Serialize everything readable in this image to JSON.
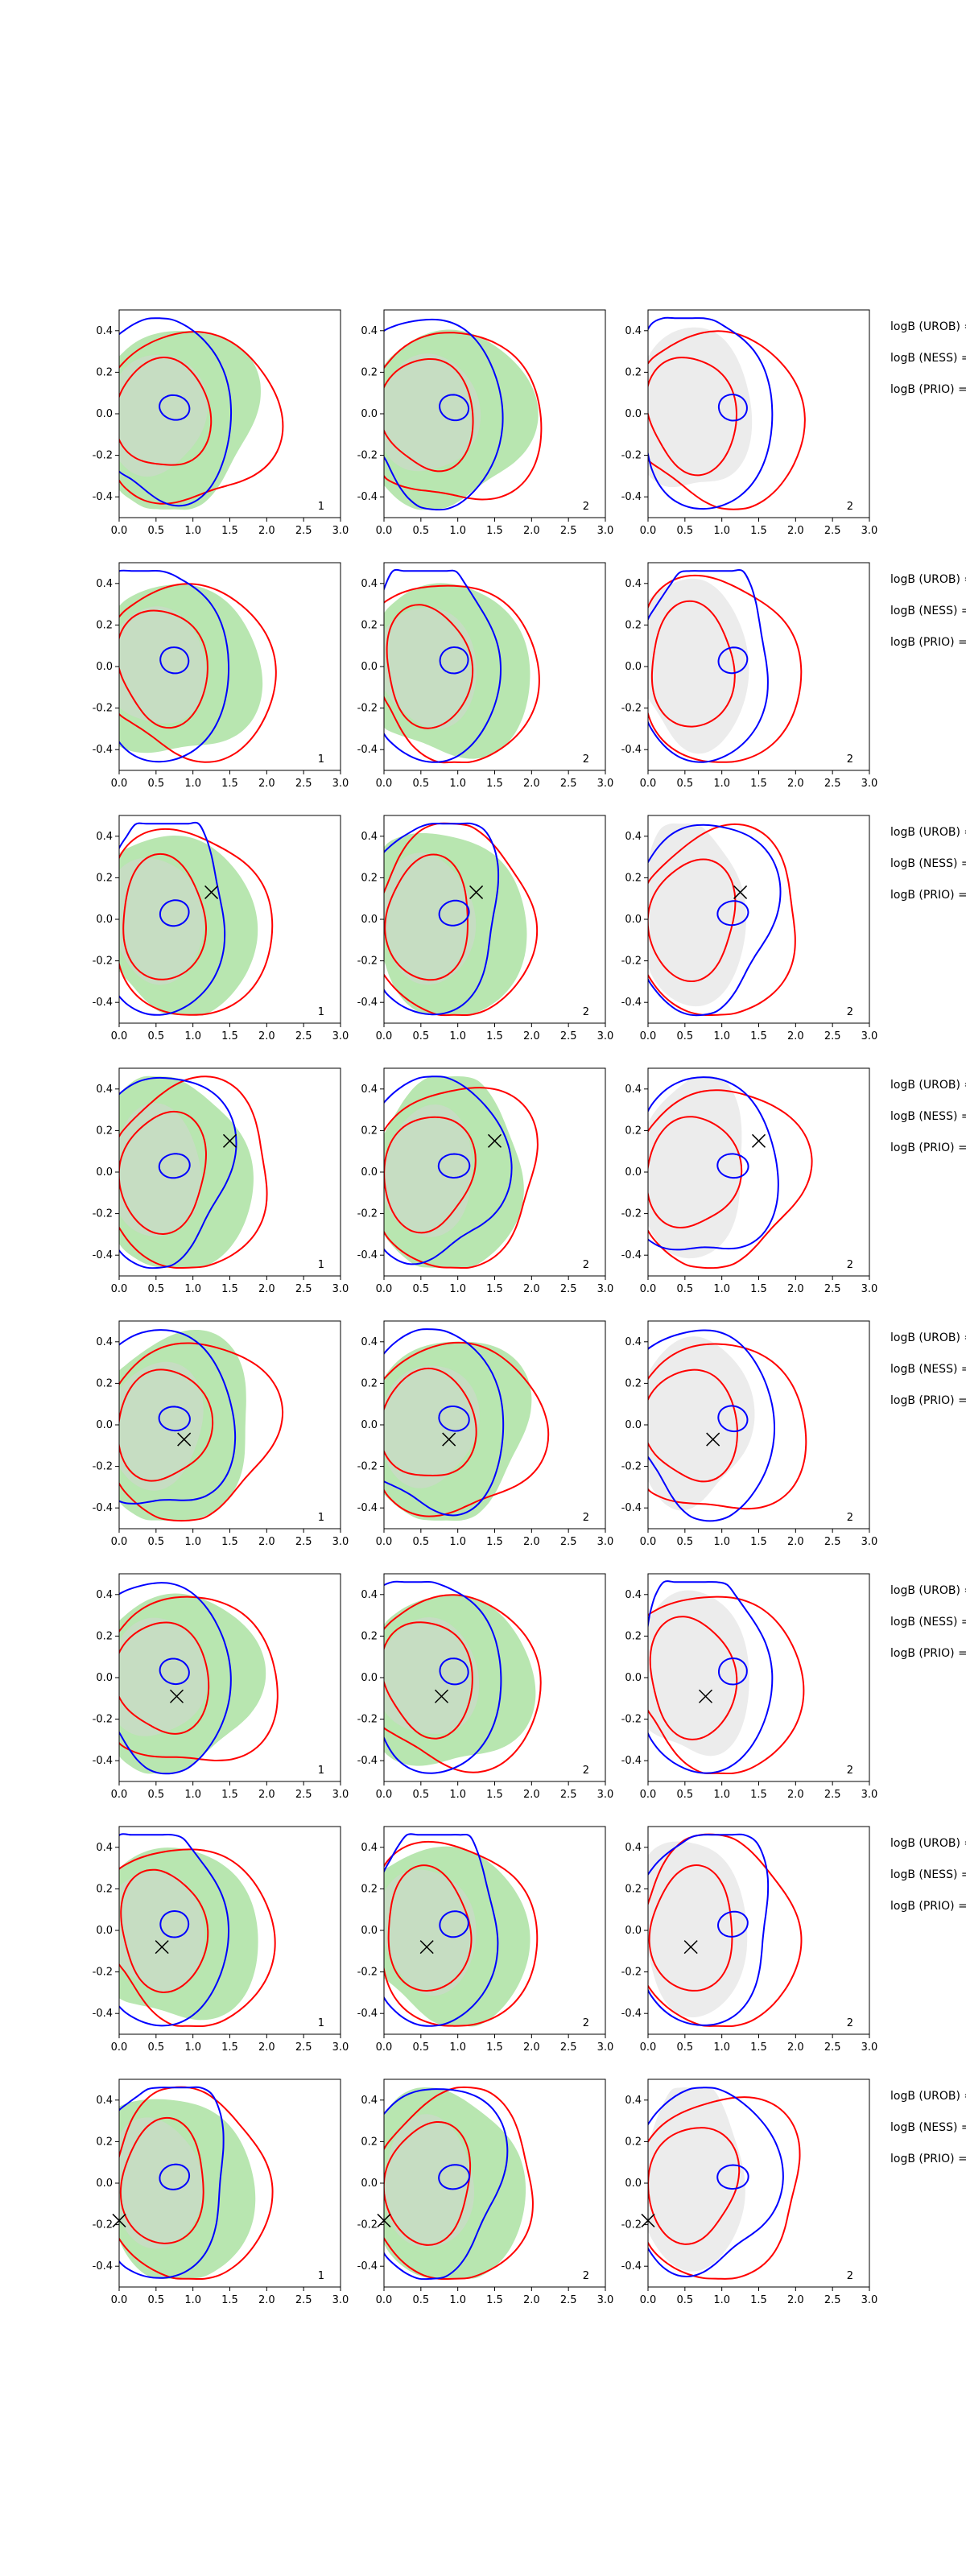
{
  "colors": {
    "background": "#ffffff",
    "contour_blue": "#0000ff",
    "contour_red": "#ff0000",
    "fill_green": "#b8e6b0",
    "fill_grey": "#d4d4d4",
    "marker": "#000000",
    "axis": "#000000"
  },
  "chart_data": {
    "type": "contour",
    "layout": "8 rows x 3 columns of panels, row annotation text at right edge",
    "grid": false,
    "xlim": [
      0.0,
      3.0
    ],
    "ylim": [
      -0.5,
      0.5
    ],
    "x_ticks": [
      "0.0",
      "0.5",
      "1.0",
      "1.5",
      "2.0",
      "2.5",
      "3.0"
    ],
    "y_ticks": [
      "-0.4",
      "-0.2",
      "0.0",
      "0.2",
      "0.4"
    ],
    "column_panel_labels": [
      "1",
      "2",
      "2"
    ],
    "row_annotations": [
      "logB (UROB) =",
      "logB (NESS) =",
      "logB (PRIO) ="
    ],
    "rows": [
      {
        "marker": null
      },
      {
        "marker": null
      },
      {
        "marker": [
          1.25,
          0.13
        ]
      },
      {
        "marker": [
          1.5,
          0.15
        ]
      },
      {
        "marker": [
          0.88,
          -0.07
        ]
      },
      {
        "marker": [
          0.78,
          -0.09
        ]
      },
      {
        "marker": [
          0.58,
          -0.08
        ]
      },
      {
        "marker": [
          0.0,
          -0.18
        ]
      }
    ]
  }
}
